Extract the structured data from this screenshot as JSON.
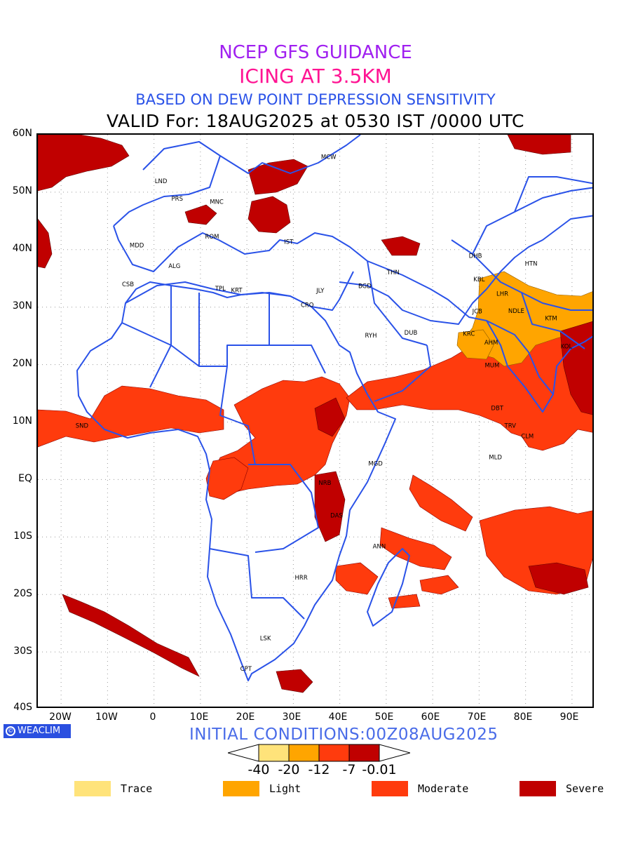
{
  "titles": {
    "line1": "NCEP GFS GUIDANCE",
    "line2": "ICING AT 3.5KM",
    "line3": "BASED ON DEW POINT DEPRESSION SENSITIVITY",
    "line4": "VALID For: 18AUG2025 at 0530 IST /0000 UTC"
  },
  "map": {
    "lon_range": [
      -25,
      95
    ],
    "lat_range": [
      -40,
      60
    ],
    "lat_ticks": [
      "60N",
      "50N",
      "40N",
      "30N",
      "20N",
      "10N",
      "EQ",
      "10S",
      "20S",
      "30S",
      "40S"
    ],
    "lon_ticks": [
      "20W",
      "10W",
      "0",
      "10E",
      "20E",
      "30E",
      "40E",
      "50E",
      "60E",
      "70E",
      "80E",
      "90E"
    ],
    "grid": "dotted",
    "boundary_color": "#2a52e8",
    "stations": [
      {
        "code": "MCW",
        "lon": 37.6,
        "lat": 55.8
      },
      {
        "code": "LND",
        "lon": 1.5,
        "lat": 51.6
      },
      {
        "code": "PRS",
        "lon": 5.0,
        "lat": 48.5
      },
      {
        "code": "MNC",
        "lon": 13.5,
        "lat": 48.0
      },
      {
        "code": "ROM",
        "lon": 12.5,
        "lat": 41.9
      },
      {
        "code": "MDD",
        "lon": -3.7,
        "lat": 40.4
      },
      {
        "code": "IST",
        "lon": 29.0,
        "lat": 41.0
      },
      {
        "code": "ALG",
        "lon": 4.4,
        "lat": 36.8
      },
      {
        "code": "CSB",
        "lon": -5.6,
        "lat": 33.6
      },
      {
        "code": "TPL",
        "lon": 14.3,
        "lat": 32.9
      },
      {
        "code": "KRT",
        "lon": 17.8,
        "lat": 32.6
      },
      {
        "code": "JLY",
        "lon": 35.8,
        "lat": 32.5
      },
      {
        "code": "CRO",
        "lon": 33.0,
        "lat": 30.0
      },
      {
        "code": "BGD",
        "lon": 45.4,
        "lat": 33.3
      },
      {
        "code": "THN",
        "lon": 51.5,
        "lat": 35.7
      },
      {
        "code": "DHB",
        "lon": 69.2,
        "lat": 38.6
      },
      {
        "code": "HTN",
        "lon": 81.2,
        "lat": 37.2
      },
      {
        "code": "KBL",
        "lon": 70.0,
        "lat": 34.5
      },
      {
        "code": "RYH",
        "lon": 46.7,
        "lat": 24.7
      },
      {
        "code": "DUB",
        "lon": 55.3,
        "lat": 25.2
      },
      {
        "code": "LHR",
        "lon": 75.0,
        "lat": 32.0
      },
      {
        "code": "JCB",
        "lon": 69.6,
        "lat": 28.9
      },
      {
        "code": "NDLE",
        "lon": 78.0,
        "lat": 29.0
      },
      {
        "code": "KTM",
        "lon": 85.5,
        "lat": 27.7
      },
      {
        "code": "KRC",
        "lon": 67.8,
        "lat": 25.0
      },
      {
        "code": "AHM",
        "lon": 72.6,
        "lat": 23.5
      },
      {
        "code": "KOL",
        "lon": 88.8,
        "lat": 22.8
      },
      {
        "code": "MUM",
        "lon": 72.8,
        "lat": 19.5
      },
      {
        "code": "DBT",
        "lon": 73.9,
        "lat": 12.1
      },
      {
        "code": "TRV",
        "lon": 76.7,
        "lat": 9.0
      },
      {
        "code": "CLM",
        "lon": 80.4,
        "lat": 7.2
      },
      {
        "code": "MLD",
        "lon": 73.5,
        "lat": 3.5
      },
      {
        "code": "SND",
        "lon": -15.5,
        "lat": 9.0
      },
      {
        "code": "MGD",
        "lon": 47.7,
        "lat": 2.4
      },
      {
        "code": "NRB",
        "lon": 36.8,
        "lat": -0.9
      },
      {
        "code": "DAS",
        "lon": 39.3,
        "lat": -6.6
      },
      {
        "code": "ANN",
        "lon": 48.5,
        "lat": -12.0
      },
      {
        "code": "HRR",
        "lon": 31.7,
        "lat": -17.4
      },
      {
        "code": "LSK",
        "lon": 24.0,
        "lat": -28.0
      },
      {
        "code": "CPT",
        "lon": 19.8,
        "lat": -33.3
      }
    ]
  },
  "scale": {
    "labels": [
      "-40",
      "-20",
      "-12",
      "-7",
      "-0.01"
    ],
    "colors": [
      "#ffe37a",
      "#ffa500",
      "#ff3b0d",
      "#c00000"
    ]
  },
  "init_text": "INITIAL CONDITIONS:00Z08AUG2025",
  "logo_text": "WEACLIM",
  "legend": [
    {
      "label": "Trace",
      "color": "#ffe37a"
    },
    {
      "label": "Light",
      "color": "#ffa500"
    },
    {
      "label": "Moderate",
      "color": "#ff3b0d"
    },
    {
      "label": "Severe",
      "color": "#c00000"
    }
  ]
}
